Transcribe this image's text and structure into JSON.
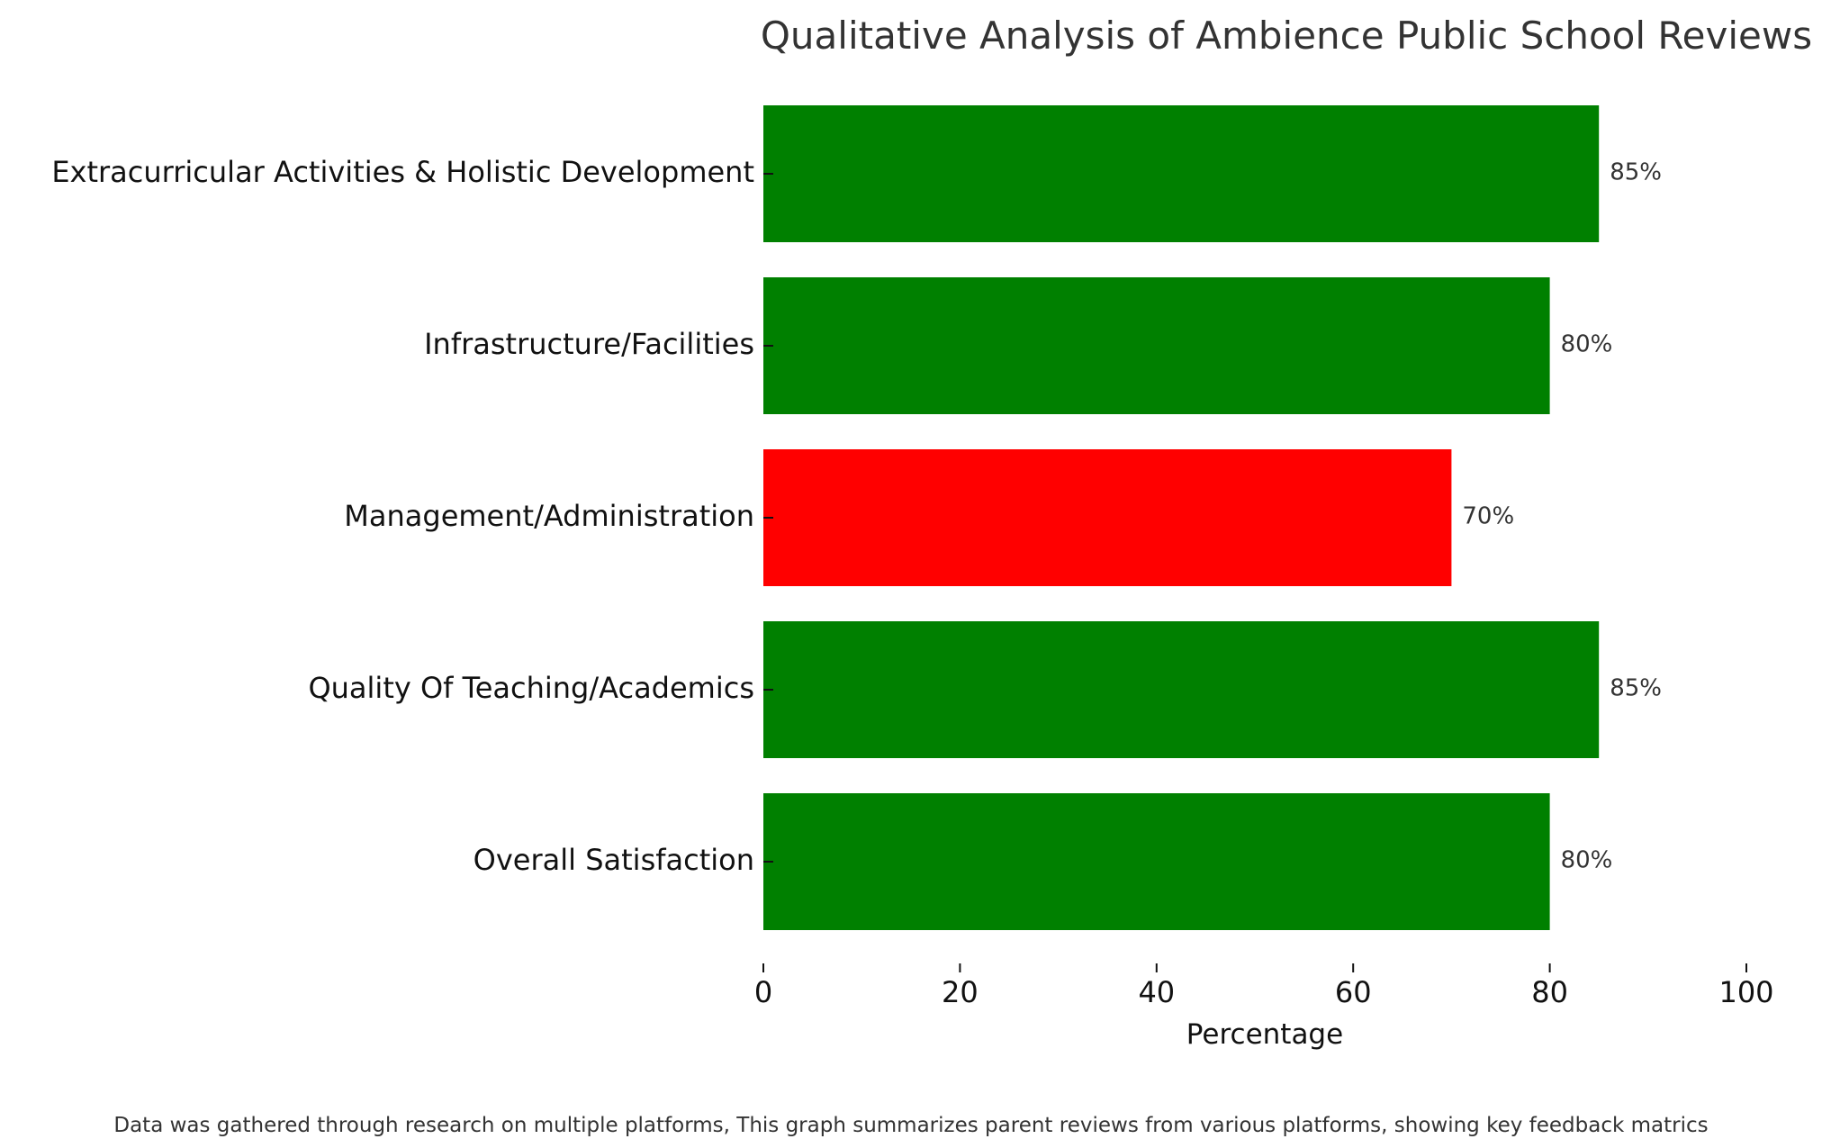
{
  "chart_data": {
    "type": "bar",
    "orientation": "horizontal",
    "title": "Qualitative Analysis of Ambience Public School Reviews",
    "xlabel": "Percentage",
    "ylabel": "",
    "xlim": [
      0,
      100
    ],
    "xticks": [
      0,
      20,
      40,
      60,
      80,
      100
    ],
    "grid": false,
    "categories": [
      "Extracurricular Activities & Holistic Development",
      "Infrastructure/Facilities",
      "Management/Administration",
      "Quality Of Teaching/Academics",
      "Overall Satisfaction"
    ],
    "values": [
      85,
      80,
      70,
      85,
      80
    ],
    "value_labels": [
      "85%",
      "80%",
      "70%",
      "85%",
      "80%"
    ],
    "bar_colors": [
      "#008000",
      "#008000",
      "#ff0000",
      "#008000",
      "#008000"
    ]
  },
  "footnote": "Data was gathered through research on multiple platforms, This graph summarizes parent reviews from various platforms, showing key feedback matrics"
}
